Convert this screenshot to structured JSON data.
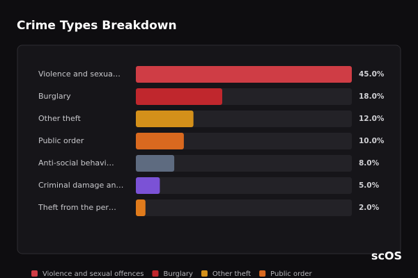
{
  "chart_data": {
    "type": "bar",
    "orientation": "horizontal",
    "title": "Crime Types Breakdown",
    "categories": [
      "Violence and sexua…",
      "Burglary",
      "Other theft",
      "Public order",
      "Anti-social behavi…",
      "Criminal damage an…",
      "Theft from the per…"
    ],
    "values": [
      45,
      18,
      12,
      10,
      8,
      5,
      2
    ],
    "value_labels": [
      "45.0%",
      "18.0%",
      "12.0%",
      "10.0%",
      "8.0%",
      "5.0%",
      "2.0%"
    ],
    "colors": [
      "#cf3d45",
      "#c0272d",
      "#d4901a",
      "#d9691f",
      "#5e6b80",
      "#7b52d6",
      "#e07b1c"
    ],
    "legend": [
      {
        "name": "Violence and sexual offences",
        "color": "#cf3d45"
      },
      {
        "name": "Burglary",
        "color": "#c0272d"
      },
      {
        "name": "Other theft",
        "color": "#d4901a"
      },
      {
        "name": "Public order",
        "color": "#d9691f"
      }
    ]
  },
  "logo": "scOS"
}
